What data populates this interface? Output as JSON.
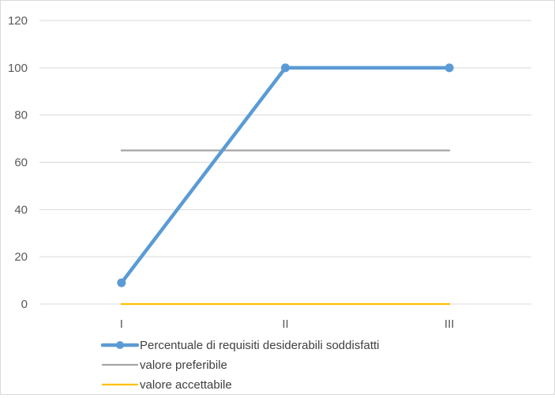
{
  "chart_data": {
    "type": "line",
    "categories": [
      "I",
      "II",
      "III"
    ],
    "ylim": [
      0,
      120
    ],
    "yticks": [
      0,
      20,
      40,
      60,
      80,
      100,
      120
    ],
    "grid": true,
    "legend_position": "bottom",
    "series": [
      {
        "name": "Percentuale di requisiti desiderabili soddisfatti",
        "values": [
          9,
          100,
          100
        ],
        "color": "#5b9bd5",
        "markers": true
      },
      {
        "name": "valore preferibile",
        "values": [
          65,
          65,
          65
        ],
        "color": "#a5a5a5",
        "markers": false
      },
      {
        "name": "valore accettabile",
        "values": [
          0,
          0,
          0
        ],
        "color": "#ffc000",
        "markers": false
      }
    ]
  }
}
